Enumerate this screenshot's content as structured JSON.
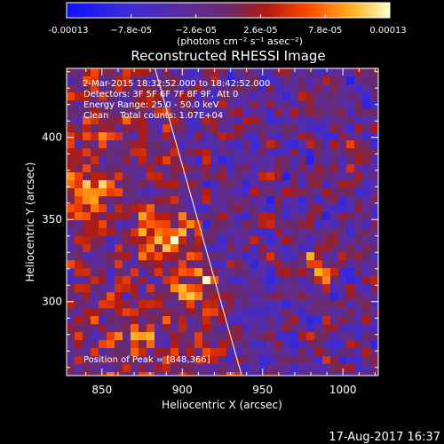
{
  "chart_data": {
    "type": "heatmap",
    "title": "Reconstructed RHESSI Image",
    "xlabel": "Heliocentric X (arcsec)",
    "ylabel": "Heliocentric Y (arcsec)",
    "xlim": [
      828,
      1022
    ],
    "ylim": [
      255,
      442
    ],
    "x_ticks": [
      850,
      900,
      950,
      1000
    ],
    "y_ticks": [
      300,
      350,
      400
    ],
    "x_tick_labels": [
      "850",
      "900",
      "950",
      "1000"
    ],
    "y_tick_labels": [
      "300",
      "350",
      "400"
    ],
    "colorbar": {
      "range": [
        -0.00013,
        0.00013
      ],
      "tick_values": [
        -0.00013,
        -7.8e-05,
        -2.6e-05,
        2.6e-05,
        7.8e-05,
        0.00013
      ],
      "tick_labels": [
        "-0.00013",
        "−7.8e-05",
        "−2.6e-05",
        "2.6e-05",
        "7.8e-05",
        "0.00013"
      ],
      "unit_label": "(photons cm⁻² s⁻¹ asec⁻²)"
    },
    "annotations": [
      " 2-Mar-2015 18:32:52.000 to 18:42:52.000",
      "Detectors: 3F 5F 6F 7F 8F 9F, Att 0",
      "Energy Range: 25.0 - 50.0 keV",
      "Clean    Total counts: 1.07E+04"
    ],
    "peak_label": "Position of Peak = [848,366]",
    "limb_line": [
      [
        883,
        442
      ],
      [
        937,
        255
      ]
    ],
    "grid": false,
    "timestamp": "17-Aug-2017 16:37",
    "colors": {
      "background": "#000000",
      "text": "#ffffff"
    }
  }
}
